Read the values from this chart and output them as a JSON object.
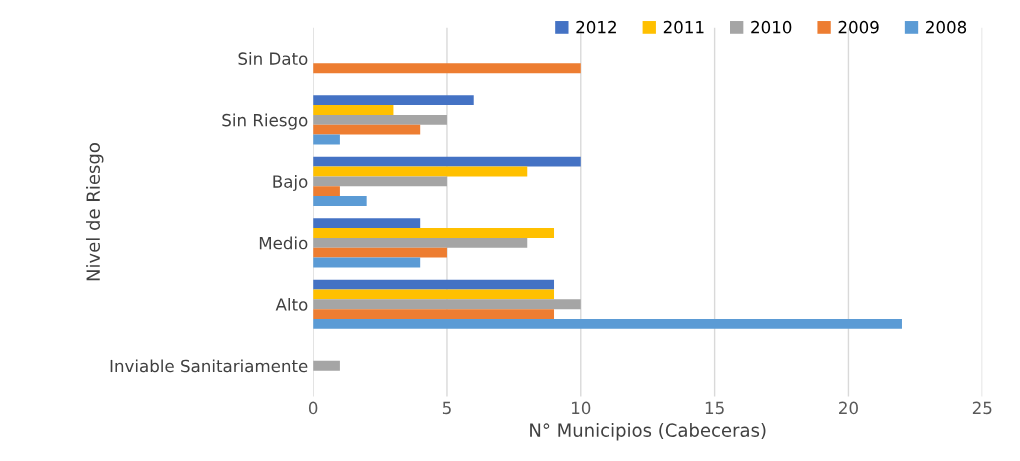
{
  "chart_data": {
    "type": "bar",
    "orientation": "horizontal",
    "xlabel": "N° Municipios (Cabeceras)",
    "ylabel": "Nivel de Riesgo",
    "categories": [
      "Sin Dato",
      "Sin Riesgo",
      "Bajo",
      "Medio",
      "Alto",
      "Inviable Sanitariamente"
    ],
    "series": [
      {
        "name": "2012",
        "color": "#4472c4",
        "values": [
          null,
          6,
          10,
          4,
          9,
          null
        ]
      },
      {
        "name": "2011",
        "color": "#ffc000",
        "values": [
          null,
          3,
          8,
          9,
          9,
          null
        ]
      },
      {
        "name": "2010",
        "color": "#a5a5a5",
        "values": [
          null,
          5,
          5,
          8,
          10,
          1
        ]
      },
      {
        "name": "2009",
        "color": "#ed7d31",
        "values": [
          10,
          4,
          1,
          5,
          9,
          null
        ]
      },
      {
        "name": "2008",
        "color": "#5b9bd5",
        "values": [
          null,
          1,
          2,
          4,
          22,
          null
        ]
      }
    ],
    "xlim": [
      0,
      25
    ],
    "xticks": [
      0,
      5,
      10,
      15,
      20,
      25
    ],
    "grid": "x",
    "legend": "top right"
  }
}
